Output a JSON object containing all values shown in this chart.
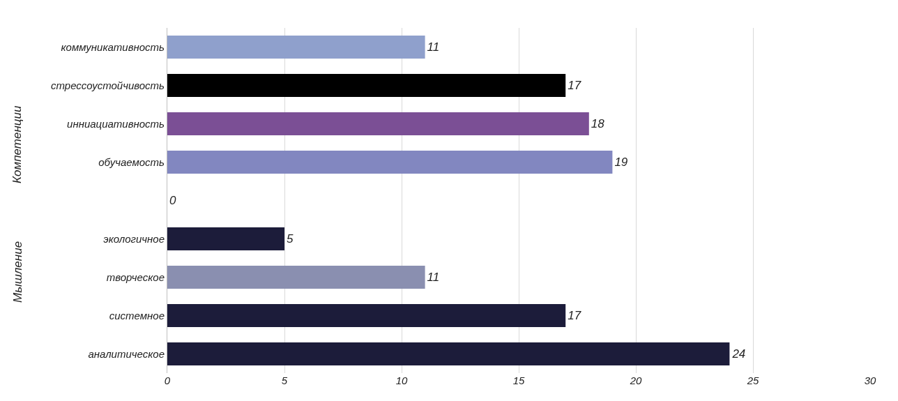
{
  "chart_data": {
    "type": "bar",
    "orientation": "horizontal",
    "categories": [
      "коммуникативность",
      "стрессоустойчивость",
      "инниациативность",
      "обучаемость",
      null,
      "экологичное",
      "творческое",
      "системное",
      "аналитическое"
    ],
    "values": [
      11,
      17,
      18,
      19,
      0,
      5,
      11,
      17,
      24
    ],
    "colors": [
      "#8fa0cc",
      "#000000",
      "#7b4f95",
      "#8287c0",
      "#8287c0",
      "#1c1c3a",
      "#8a8fb0",
      "#1c1c3a",
      "#1c1c3a"
    ],
    "xlim": [
      0,
      30
    ],
    "xticks": [
      0,
      5,
      10,
      15,
      20,
      25,
      30
    ],
    "grid": "x",
    "data_labels": true,
    "annotations": [
      "Компетенции",
      "Мышление"
    ]
  }
}
